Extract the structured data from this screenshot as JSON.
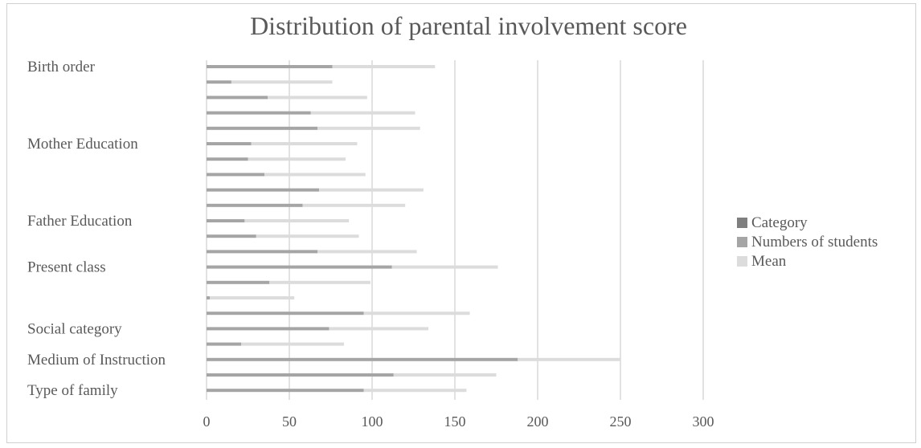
{
  "chart_data": {
    "type": "bar",
    "orientation": "horizontal",
    "stacked": true,
    "title": "Distribution of parental involvement score",
    "xlim": [
      0,
      300
    ],
    "x_ticks": [
      0,
      50,
      100,
      150,
      200,
      250,
      300
    ],
    "grid": true,
    "legend_position": "right",
    "category_labels": [
      "Birth order",
      "Mother Education",
      "Father Education",
      "Present class",
      "Social category",
      "Medium of Instruction",
      "Type of family"
    ],
    "category_label_rows": [
      0,
      5,
      10,
      13,
      17,
      19,
      21
    ],
    "series": [
      {
        "name": "Category",
        "color": "#7f7f7f",
        "values": [
          0,
          0,
          0,
          0,
          0,
          0,
          0,
          0,
          0,
          0,
          0,
          0,
          0,
          0,
          0,
          0,
          0,
          0,
          0,
          0,
          0,
          0
        ]
      },
      {
        "name": "Numbers of students",
        "color": "#a5a5a5",
        "values": [
          76,
          15,
          37,
          63,
          67,
          27,
          25,
          35,
          68,
          58,
          23,
          30,
          67,
          112,
          38,
          2,
          95,
          74,
          21,
          188,
          113,
          95
        ]
      },
      {
        "name": "Mean",
        "color": "#dcdcdc",
        "values": [
          62,
          61,
          60,
          63,
          62,
          64,
          59,
          61,
          63,
          62,
          63,
          62,
          60,
          64,
          61,
          51,
          64,
          60,
          62,
          62,
          62,
          62
        ]
      }
    ]
  }
}
